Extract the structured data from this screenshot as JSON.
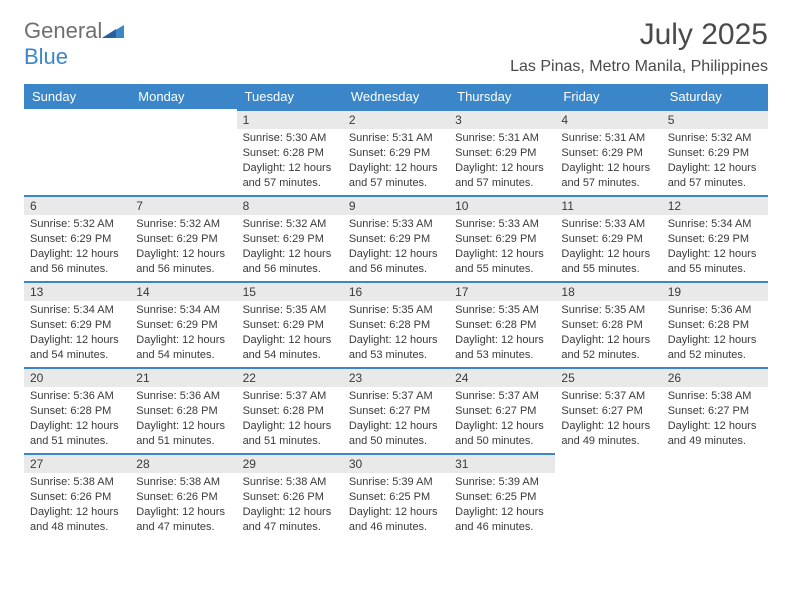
{
  "logo": {
    "word1": "General",
    "word2": "Blue"
  },
  "title": "July 2025",
  "subtitle": "Las Pinas, Metro Manila, Philippines",
  "colors": {
    "header_bg": "#3a86c8",
    "header_text": "#ffffff",
    "daybar_bg": "#e9e9e9",
    "daybar_border": "#3a86c8",
    "text": "#3a3a3a",
    "logo_grey": "#6f6f6f",
    "logo_blue": "#3a86c8",
    "page_bg": "#ffffff"
  },
  "fontsize": {
    "title": 30,
    "subtitle": 16,
    "header": 13,
    "daynum": 12,
    "body": 11
  },
  "columns": [
    "Sunday",
    "Monday",
    "Tuesday",
    "Wednesday",
    "Thursday",
    "Friday",
    "Saturday"
  ],
  "weeks": [
    [
      null,
      null,
      {
        "n": "1",
        "sr": "5:30 AM",
        "ss": "6:28 PM",
        "dl": "12 hours and 57 minutes."
      },
      {
        "n": "2",
        "sr": "5:31 AM",
        "ss": "6:29 PM",
        "dl": "12 hours and 57 minutes."
      },
      {
        "n": "3",
        "sr": "5:31 AM",
        "ss": "6:29 PM",
        "dl": "12 hours and 57 minutes."
      },
      {
        "n": "4",
        "sr": "5:31 AM",
        "ss": "6:29 PM",
        "dl": "12 hours and 57 minutes."
      },
      {
        "n": "5",
        "sr": "5:32 AM",
        "ss": "6:29 PM",
        "dl": "12 hours and 57 minutes."
      }
    ],
    [
      {
        "n": "6",
        "sr": "5:32 AM",
        "ss": "6:29 PM",
        "dl": "12 hours and 56 minutes."
      },
      {
        "n": "7",
        "sr": "5:32 AM",
        "ss": "6:29 PM",
        "dl": "12 hours and 56 minutes."
      },
      {
        "n": "8",
        "sr": "5:32 AM",
        "ss": "6:29 PM",
        "dl": "12 hours and 56 minutes."
      },
      {
        "n": "9",
        "sr": "5:33 AM",
        "ss": "6:29 PM",
        "dl": "12 hours and 56 minutes."
      },
      {
        "n": "10",
        "sr": "5:33 AM",
        "ss": "6:29 PM",
        "dl": "12 hours and 55 minutes."
      },
      {
        "n": "11",
        "sr": "5:33 AM",
        "ss": "6:29 PM",
        "dl": "12 hours and 55 minutes."
      },
      {
        "n": "12",
        "sr": "5:34 AM",
        "ss": "6:29 PM",
        "dl": "12 hours and 55 minutes."
      }
    ],
    [
      {
        "n": "13",
        "sr": "5:34 AM",
        "ss": "6:29 PM",
        "dl": "12 hours and 54 minutes."
      },
      {
        "n": "14",
        "sr": "5:34 AM",
        "ss": "6:29 PM",
        "dl": "12 hours and 54 minutes."
      },
      {
        "n": "15",
        "sr": "5:35 AM",
        "ss": "6:29 PM",
        "dl": "12 hours and 54 minutes."
      },
      {
        "n": "16",
        "sr": "5:35 AM",
        "ss": "6:28 PM",
        "dl": "12 hours and 53 minutes."
      },
      {
        "n": "17",
        "sr": "5:35 AM",
        "ss": "6:28 PM",
        "dl": "12 hours and 53 minutes."
      },
      {
        "n": "18",
        "sr": "5:35 AM",
        "ss": "6:28 PM",
        "dl": "12 hours and 52 minutes."
      },
      {
        "n": "19",
        "sr": "5:36 AM",
        "ss": "6:28 PM",
        "dl": "12 hours and 52 minutes."
      }
    ],
    [
      {
        "n": "20",
        "sr": "5:36 AM",
        "ss": "6:28 PM",
        "dl": "12 hours and 51 minutes."
      },
      {
        "n": "21",
        "sr": "5:36 AM",
        "ss": "6:28 PM",
        "dl": "12 hours and 51 minutes."
      },
      {
        "n": "22",
        "sr": "5:37 AM",
        "ss": "6:28 PM",
        "dl": "12 hours and 51 minutes."
      },
      {
        "n": "23",
        "sr": "5:37 AM",
        "ss": "6:27 PM",
        "dl": "12 hours and 50 minutes."
      },
      {
        "n": "24",
        "sr": "5:37 AM",
        "ss": "6:27 PM",
        "dl": "12 hours and 50 minutes."
      },
      {
        "n": "25",
        "sr": "5:37 AM",
        "ss": "6:27 PM",
        "dl": "12 hours and 49 minutes."
      },
      {
        "n": "26",
        "sr": "5:38 AM",
        "ss": "6:27 PM",
        "dl": "12 hours and 49 minutes."
      }
    ],
    [
      {
        "n": "27",
        "sr": "5:38 AM",
        "ss": "6:26 PM",
        "dl": "12 hours and 48 minutes."
      },
      {
        "n": "28",
        "sr": "5:38 AM",
        "ss": "6:26 PM",
        "dl": "12 hours and 47 minutes."
      },
      {
        "n": "29",
        "sr": "5:38 AM",
        "ss": "6:26 PM",
        "dl": "12 hours and 47 minutes."
      },
      {
        "n": "30",
        "sr": "5:39 AM",
        "ss": "6:25 PM",
        "dl": "12 hours and 46 minutes."
      },
      {
        "n": "31",
        "sr": "5:39 AM",
        "ss": "6:25 PM",
        "dl": "12 hours and 46 minutes."
      },
      null,
      null
    ]
  ],
  "labels": {
    "sunrise": "Sunrise:",
    "sunset": "Sunset:",
    "daylight": "Daylight:"
  }
}
